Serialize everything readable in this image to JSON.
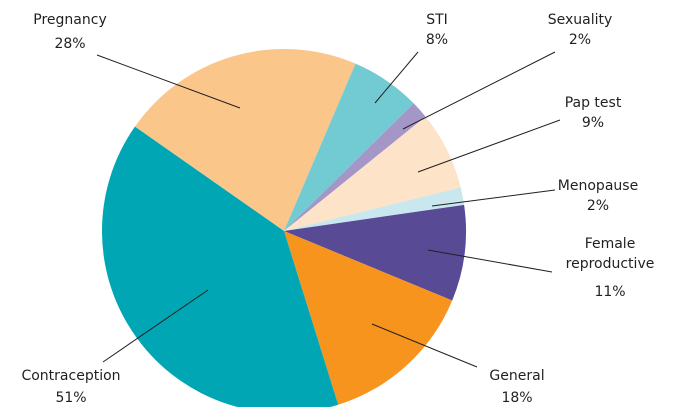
{
  "chart_data": {
    "type": "pie",
    "categories": [
      "Pregnancy",
      "STI",
      "Sexuality",
      "Pap test",
      "Menopause",
      "Female reproductive",
      "General",
      "Contraception"
    ],
    "values": [
      28,
      8,
      2,
      9,
      2,
      11,
      18,
      51
    ],
    "value_labels": [
      "28%",
      "8%",
      "2%",
      "9%",
      "2%",
      "11%",
      "18%",
      "51%"
    ],
    "colors": [
      "#fbc68a",
      "#72cbd3",
      "#a596c8",
      "#fde3c8",
      "#c9e7ee",
      "#594a96",
      "#f7941d",
      "#00a6b4"
    ]
  }
}
